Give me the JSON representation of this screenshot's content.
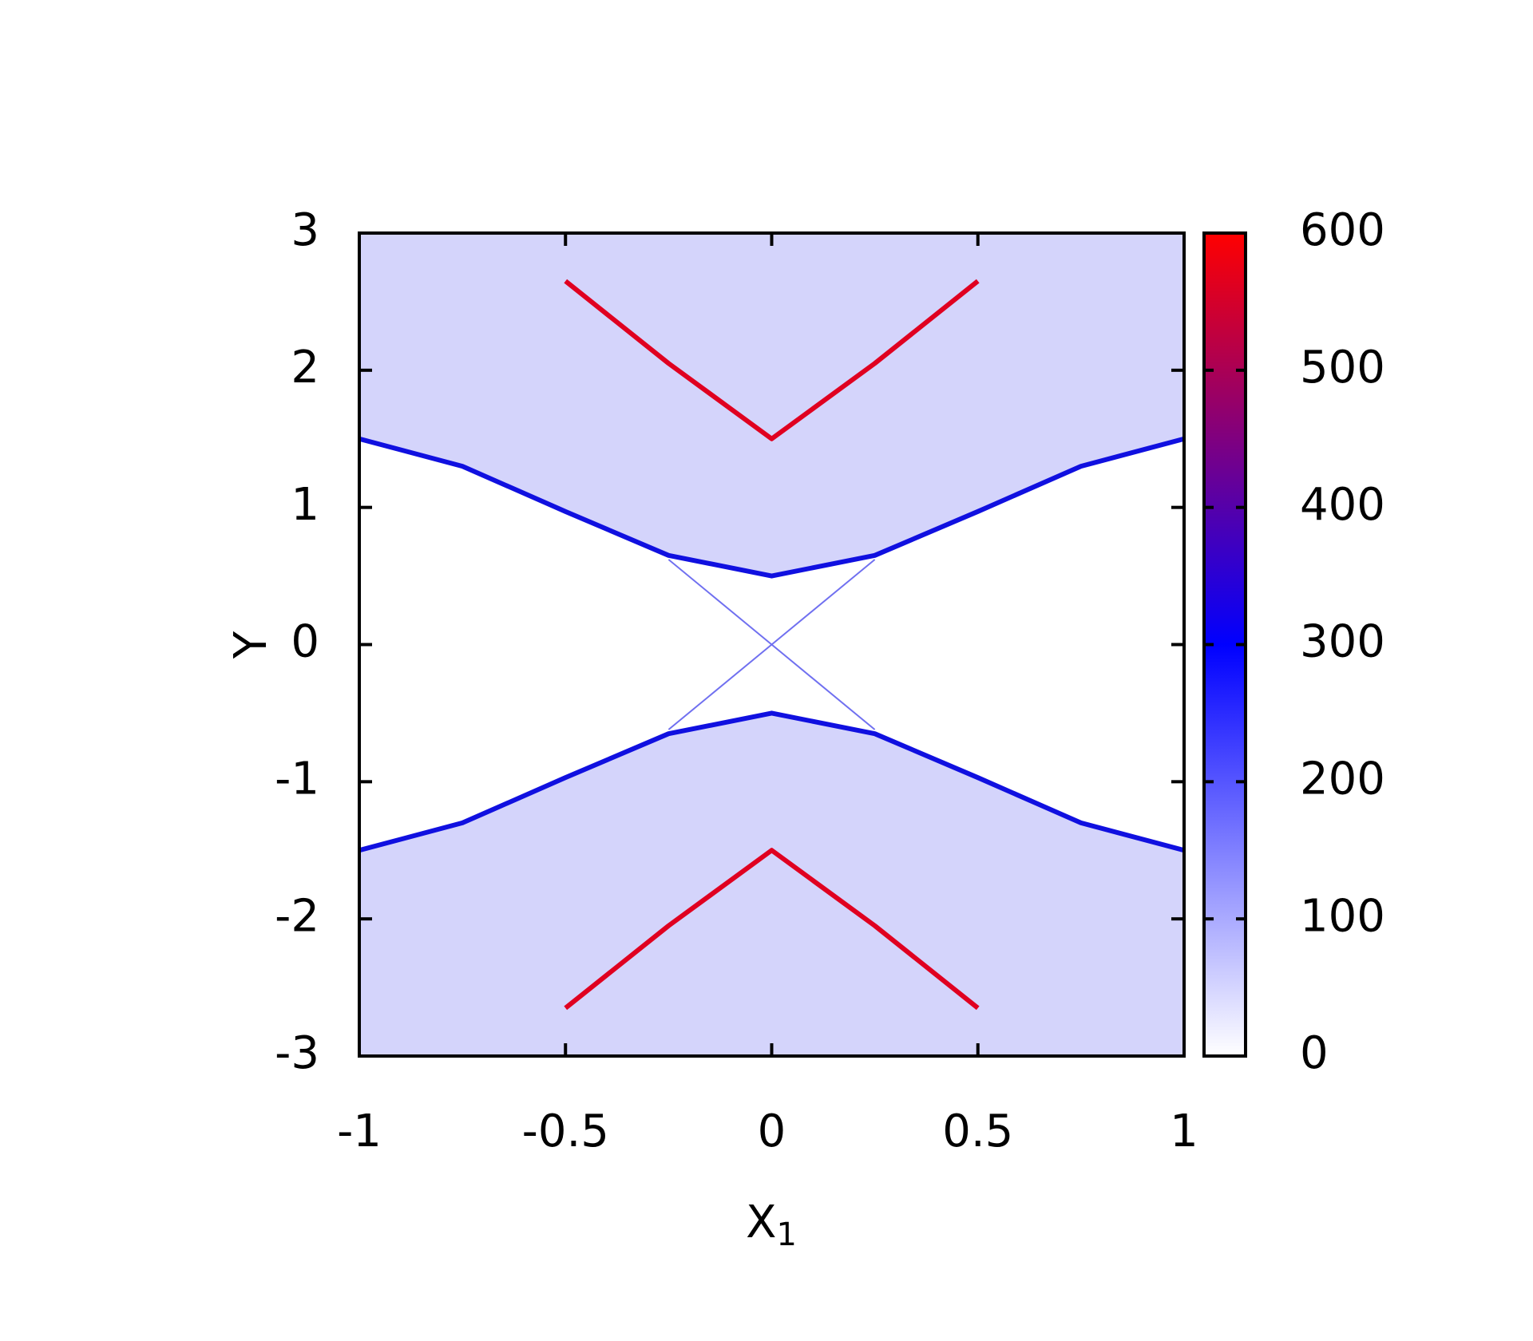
{
  "chart_data": {
    "type": "heatmap-bands",
    "xlabel": "X",
    "xlabel_sub": "1",
    "ylabel": "Y",
    "x": [
      -1,
      -0.75,
      -0.5,
      -0.25,
      0,
      0.25,
      0.5,
      0.75,
      1
    ],
    "series": [
      {
        "color": "#1010e0",
        "values": [
          1.5,
          1.3,
          0.97,
          0.65,
          0.5,
          0.65,
          0.97,
          1.3,
          1.5
        ]
      },
      {
        "color": "#e00020",
        "values": [
          null,
          null,
          2.65,
          2.05,
          1.5,
          2.05,
          2.65,
          null,
          null
        ]
      },
      {
        "color": "#1010e0",
        "values": [
          -1.5,
          -1.3,
          -0.97,
          -0.65,
          -0.5,
          -0.65,
          -0.97,
          -1.3,
          -1.5
        ]
      },
      {
        "color": "#e00020",
        "values": [
          null,
          null,
          -2.65,
          -2.05,
          -1.5,
          -2.05,
          -2.65,
          null,
          null
        ]
      },
      {
        "color": "#7070f0",
        "values": [
          null,
          null,
          null,
          -0.62,
          0,
          0.62,
          null,
          null,
          null
        ]
      },
      {
        "color": "#7070f0",
        "values": [
          null,
          null,
          null,
          0.62,
          0,
          -0.62,
          null,
          null,
          null
        ]
      }
    ],
    "xlim": [
      -1,
      1
    ],
    "xticks": [
      -1,
      -0.5,
      0,
      0.5,
      1
    ],
    "ylim": [
      -3,
      3
    ],
    "yticks": [
      -3,
      -2,
      -1,
      0,
      1,
      2,
      3
    ],
    "clim": [
      0,
      600
    ],
    "cticks": [
      0,
      100,
      200,
      300,
      400,
      500,
      600
    ],
    "colormap": [
      "#ffffff",
      "#0000ff",
      "#ff0000"
    ]
  }
}
